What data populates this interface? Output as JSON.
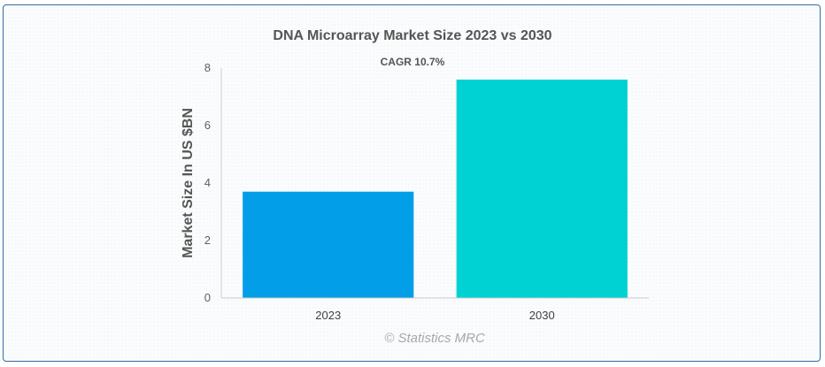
{
  "chart_data": {
    "type": "bar",
    "title": "DNA Microarray Market Size 2023 vs 2030",
    "subtitle": "CAGR 10.7%",
    "xlabel": "",
    "ylabel": "Market Size In US $BN",
    "categories": [
      "2023",
      "2030"
    ],
    "values": [
      3.7,
      7.6
    ],
    "bar_colors": [
      "#039ee8",
      "#00d2d3"
    ],
    "ylim": [
      0,
      8
    ],
    "yticks": [
      0,
      2,
      4,
      6,
      8
    ],
    "grid": false,
    "legend": "none"
  },
  "credit": "© Statistics MRC",
  "colors": {
    "border": "#2f6da3",
    "axis": "#cccccc"
  }
}
